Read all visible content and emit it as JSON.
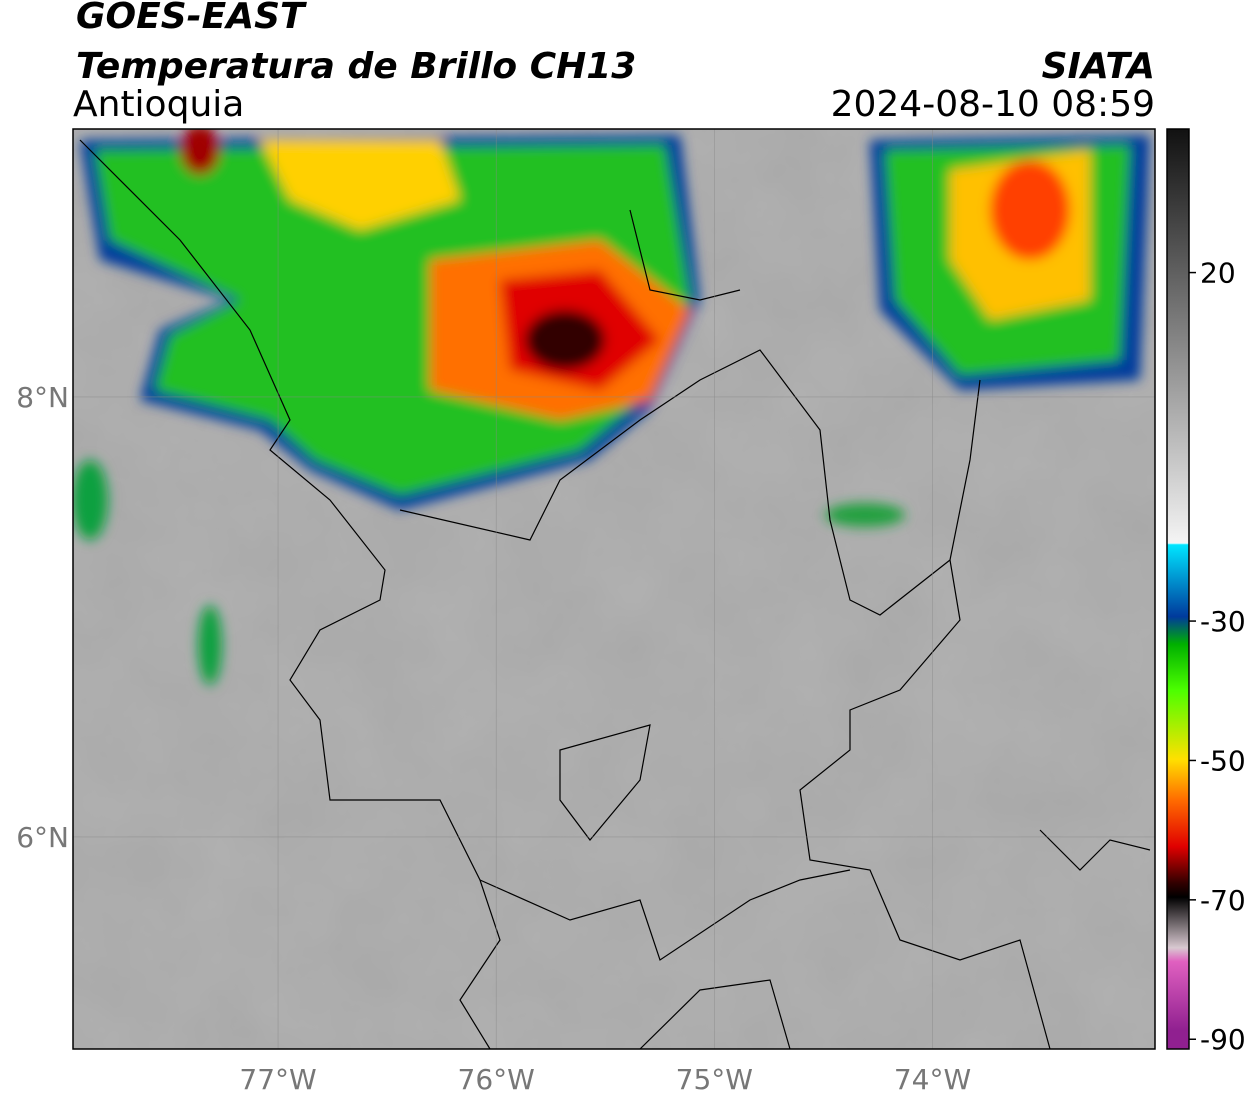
{
  "header": {
    "title": "GOES-EAST",
    "subtitle": "Temperatura de Brillo CH13",
    "region": "Antioquia",
    "source": "SIATA",
    "datetime": "2024-08-10 08:59"
  },
  "map": {
    "lonlim": [
      -77.94,
      -72.98
    ],
    "latlim": [
      5.036,
      9.218
    ],
    "lon_ticks": [
      {
        "value": -77,
        "label": "77°W"
      },
      {
        "value": -76,
        "label": "76°W"
      },
      {
        "value": -75,
        "label": "75°W"
      },
      {
        "value": -74,
        "label": "74°W"
      }
    ],
    "lat_ticks": [
      {
        "value": 8,
        "label": "8°N"
      },
      {
        "value": 6,
        "label": "6°N"
      }
    ]
  },
  "colorbar": {
    "lim": [
      -91.4,
      40.6
    ],
    "ticks": [
      20,
      -30,
      -50,
      -70,
      -90
    ]
  }
}
